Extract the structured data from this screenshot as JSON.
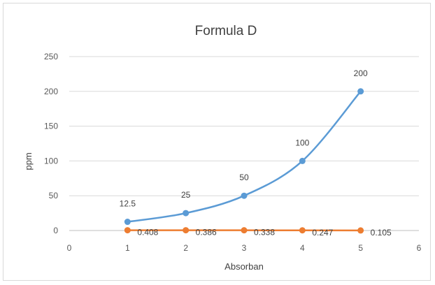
{
  "chart_data": {
    "type": "scatter",
    "title": "Formula D",
    "xlabel": "Absorban",
    "ylabel": "ppm",
    "xlim": [
      0,
      6
    ],
    "ylim": [
      0,
      250
    ],
    "xticks": [
      0,
      1,
      2,
      3,
      4,
      5,
      6
    ],
    "yticks": [
      0,
      50,
      100,
      150,
      200,
      250
    ],
    "grid": "horizontal",
    "legend": "none",
    "series": [
      {
        "color": "#5b9bd5",
        "smooth": true,
        "points": [
          {
            "x": 1,
            "y": 12.5,
            "label": "12.5"
          },
          {
            "x": 2,
            "y": 25,
            "label": "25"
          },
          {
            "x": 3,
            "y": 50,
            "label": "50"
          },
          {
            "x": 4,
            "y": 100,
            "label": "100"
          },
          {
            "x": 5,
            "y": 200,
            "label": "200"
          }
        ]
      },
      {
        "color": "#ed7d31",
        "smooth": false,
        "points": [
          {
            "x": 1,
            "y": 0.408,
            "label": "0.408"
          },
          {
            "x": 2,
            "y": 0.386,
            "label": "0.386"
          },
          {
            "x": 3,
            "y": 0.338,
            "label": "0.338"
          },
          {
            "x": 4,
            "y": 0.247,
            "label": "0.247"
          },
          {
            "x": 5,
            "y": 0.105,
            "label": "0.105"
          }
        ]
      }
    ]
  }
}
